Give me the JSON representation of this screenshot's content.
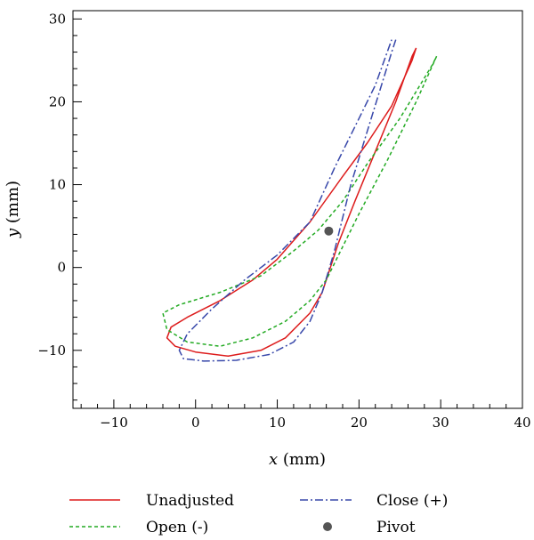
{
  "chart_data": {
    "type": "line",
    "xlabel_var": "x",
    "xlabel_unit": " (mm)",
    "ylabel_var": "y",
    "ylabel_unit": " (mm)",
    "xlim": [
      -15,
      40
    ],
    "ylim": [
      -17,
      31
    ],
    "xticks": [
      -10,
      0,
      10,
      20,
      30,
      40
    ],
    "xtick_labels": [
      "−10",
      "0",
      "10",
      "20",
      "30",
      "40"
    ],
    "yticks": [
      -10,
      0,
      10,
      20,
      30
    ],
    "ytick_labels": [
      "−10",
      "0",
      "10",
      "20",
      "30"
    ],
    "grid": false,
    "legend_position": "bottom",
    "series": [
      {
        "name": "Unadjusted",
        "color": "#dd1c1c",
        "style": "solid",
        "points": [
          [
            27,
            26.5
          ],
          [
            26.5,
            25.5
          ],
          [
            24.5,
            20
          ],
          [
            22,
            14
          ],
          [
            19.5,
            8
          ],
          [
            17.5,
            3
          ],
          [
            16.5,
            0
          ],
          [
            15.5,
            -3
          ],
          [
            14,
            -5.5
          ],
          [
            11,
            -8.5
          ],
          [
            8,
            -10
          ],
          [
            4,
            -10.7
          ],
          [
            0,
            -10.2
          ],
          [
            -2.5,
            -9.5
          ],
          [
            -3.5,
            -8.5
          ],
          [
            -3,
            -7.2
          ],
          [
            -1,
            -6
          ],
          [
            3,
            -4
          ],
          [
            7,
            -1.5
          ],
          [
            10,
            1
          ],
          [
            14,
            5.5
          ],
          [
            18,
            11
          ],
          [
            21,
            15
          ],
          [
            24,
            19.5
          ],
          [
            26.5,
            25
          ],
          [
            27,
            26.5
          ]
        ]
      },
      {
        "name": "Open (-)",
        "color": "#22aa22",
        "style": "dashed",
        "points": [
          [
            29.5,
            25.5
          ],
          [
            27,
            20
          ],
          [
            23.5,
            13
          ],
          [
            20,
            6.5
          ],
          [
            17.5,
            1.5
          ],
          [
            16,
            -1.5
          ],
          [
            14,
            -4
          ],
          [
            11,
            -6.5
          ],
          [
            7,
            -8.5
          ],
          [
            3,
            -9.5
          ],
          [
            -1,
            -9
          ],
          [
            -3.5,
            -7.5
          ],
          [
            -4,
            -5.5
          ],
          [
            -2,
            -4.5
          ],
          [
            3,
            -3
          ],
          [
            8,
            -1
          ],
          [
            12,
            2
          ],
          [
            15,
            4.5
          ],
          [
            18,
            8
          ],
          [
            21,
            12.5
          ],
          [
            25,
            18
          ],
          [
            29,
            24.5
          ],
          [
            29.5,
            25.5
          ]
        ]
      },
      {
        "name": "Close (+)",
        "color": "#3848aa",
        "style": "dashdot",
        "points": [
          [
            24.5,
            27.5
          ],
          [
            24,
            26
          ],
          [
            21.5,
            18
          ],
          [
            19,
            10
          ],
          [
            17,
            2
          ],
          [
            15.5,
            -3
          ],
          [
            14,
            -6.5
          ],
          [
            12,
            -9
          ],
          [
            9,
            -10.5
          ],
          [
            5,
            -11.2
          ],
          [
            1,
            -11.3
          ],
          [
            -1.5,
            -11
          ],
          [
            -2,
            -10
          ],
          [
            -1,
            -8
          ],
          [
            2,
            -5
          ],
          [
            6,
            -1.5
          ],
          [
            10,
            1.5
          ],
          [
            14,
            5.5
          ],
          [
            17,
            12
          ],
          [
            20,
            18
          ],
          [
            22,
            22
          ],
          [
            24,
            27.5
          ]
        ]
      },
      {
        "name": "Pivot",
        "color": "#555555",
        "style": "marker",
        "points": [
          [
            16.3,
            4.4
          ]
        ]
      }
    ]
  }
}
